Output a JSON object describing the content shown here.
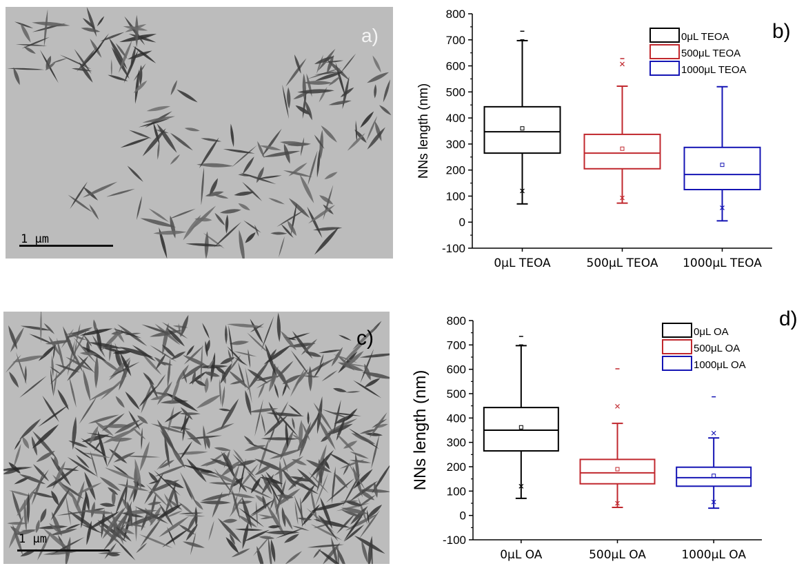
{
  "panels": {
    "a": {
      "label": "a)",
      "scale_bar_label": "1 μm"
    },
    "c": {
      "label": "c)",
      "scale_bar_label": "1 μm"
    }
  },
  "chart_data": [
    {
      "panel_label": "b)",
      "type": "box",
      "ylabel": "NNs length (nm)",
      "xlabel": "",
      "ylim": [
        -100,
        800
      ],
      "yticks": [
        -100,
        0,
        100,
        200,
        300,
        400,
        500,
        600,
        700,
        800
      ],
      "categories": [
        "0μL TEOA",
        "500μL TEOA",
        "1000μL TEOA"
      ],
      "legend": [
        "0μL TEOA",
        "500μL TEOA",
        "1000μL TEOA"
      ],
      "legend_position": "top-right",
      "colors": [
        "#000000",
        "#c0272d",
        "#1414b4"
      ],
      "boxes": [
        {
          "whisker_low": 70,
          "q1": 265,
          "median": 347,
          "q3": 443,
          "whisker_high": 697,
          "mean": 360,
          "x_marks": [
            120
          ],
          "dash_marks": [
            700,
            733
          ]
        },
        {
          "whisker_low": 73,
          "q1": 205,
          "median": 265,
          "q3": 337,
          "whisker_high": 522,
          "mean": 282,
          "x_marks": [
            93,
            607
          ],
          "dash_marks": [
            628
          ]
        },
        {
          "whisker_low": 5,
          "q1": 125,
          "median": 183,
          "q3": 287,
          "whisker_high": 520,
          "mean": 220,
          "x_marks": [
            55
          ],
          "dash_marks": []
        }
      ]
    },
    {
      "panel_label": "d)",
      "type": "box",
      "ylabel": "NNs length (nm)",
      "xlabel": "",
      "ylim": [
        -100,
        800
      ],
      "yticks": [
        -100,
        0,
        100,
        200,
        300,
        400,
        500,
        600,
        700,
        800
      ],
      "categories": [
        "0μL OA",
        "500μL OA",
        "1000μL OA"
      ],
      "legend": [
        "0μL OA",
        "500μL OA",
        "1000μL OA"
      ],
      "legend_position": "top-right",
      "colors": [
        "#000000",
        "#c0272d",
        "#1414b4"
      ],
      "boxes": [
        {
          "whisker_low": 70,
          "q1": 265,
          "median": 350,
          "q3": 443,
          "whisker_high": 697,
          "mean": 362,
          "x_marks": [
            120
          ],
          "dash_marks": [
            700,
            735
          ]
        },
        {
          "whisker_low": 33,
          "q1": 130,
          "median": 175,
          "q3": 230,
          "whisker_high": 378,
          "mean": 190,
          "x_marks": [
            50,
            448
          ],
          "dash_marks": [
            602
          ]
        },
        {
          "whisker_low": 30,
          "q1": 120,
          "median": 155,
          "q3": 198,
          "whisker_high": 318,
          "mean": 163,
          "x_marks": [
            55,
            338
          ],
          "dash_marks": [
            487
          ]
        }
      ]
    }
  ]
}
